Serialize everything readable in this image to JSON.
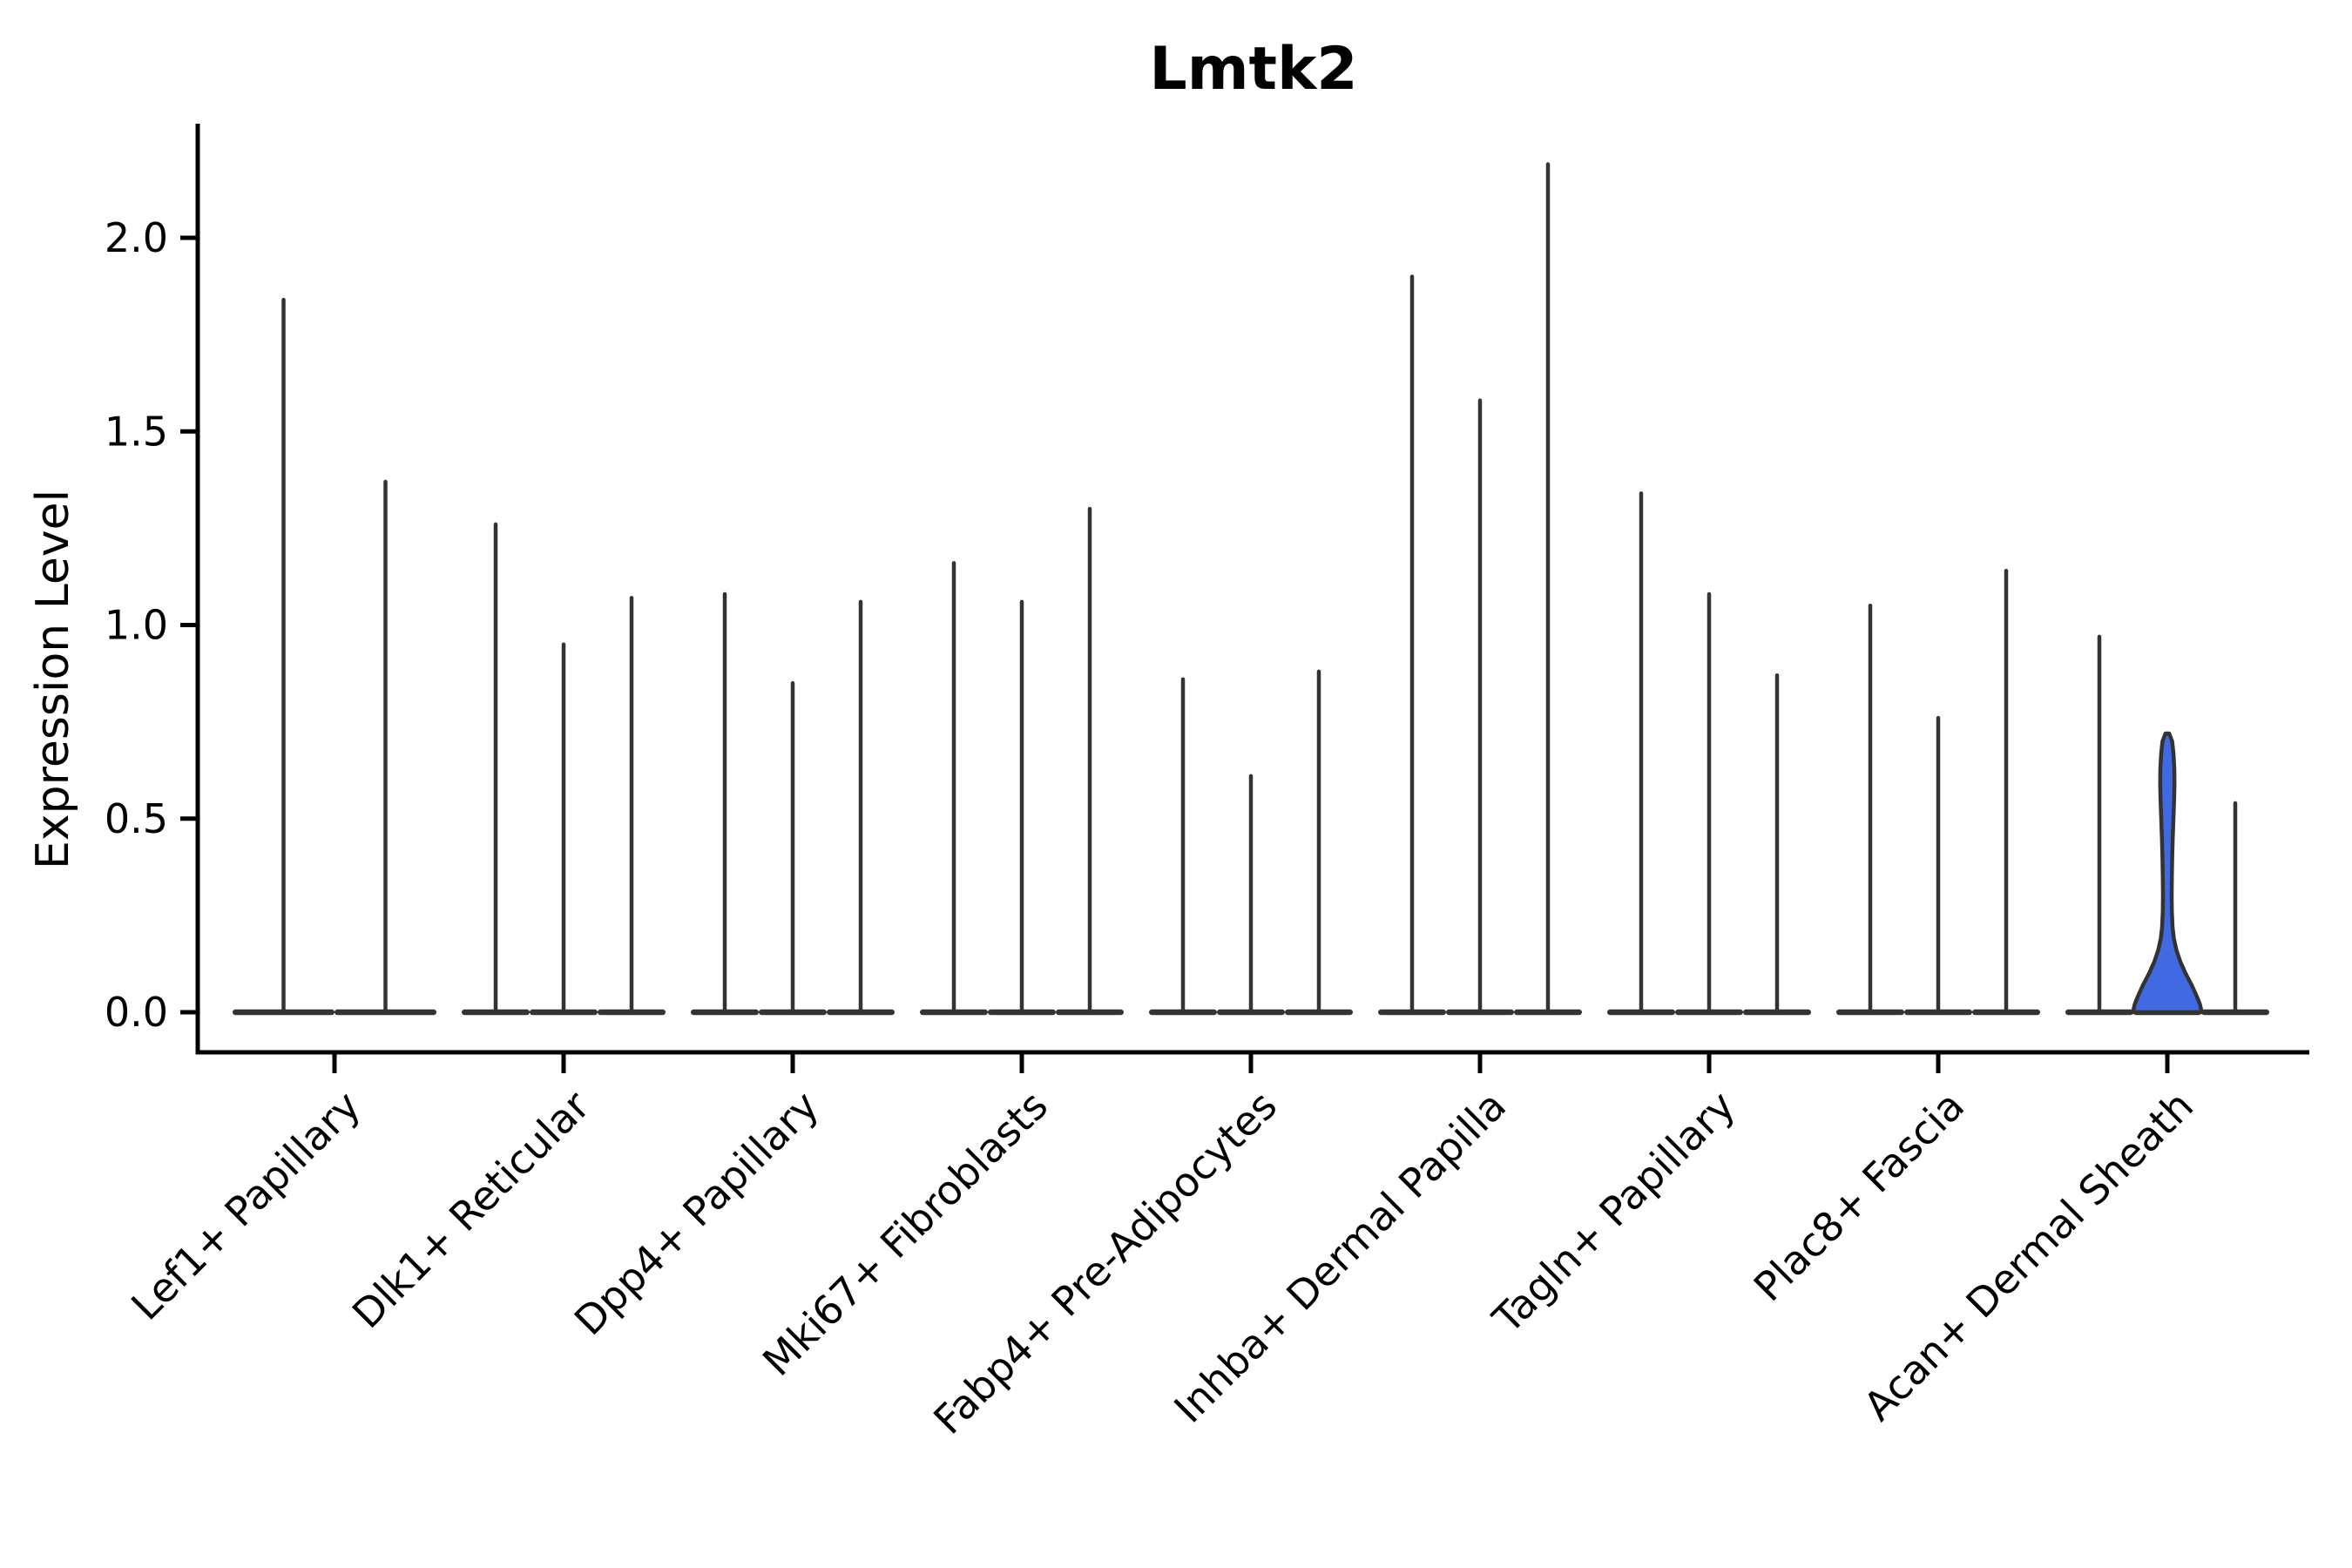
{
  "chart_data": {
    "type": "violin",
    "title": "Lmtk2",
    "xlabel": "",
    "ylabel": "Expression Level",
    "ylim": [
      0.0,
      2.3
    ],
    "yticks": [
      0.0,
      0.5,
      1.0,
      1.5,
      2.0
    ],
    "ytick_labels": [
      "0.0",
      "0.5",
      "1.0",
      "1.5",
      "2.0"
    ],
    "grid": false,
    "legend_position": "none",
    "baseline_value": 0.0,
    "categories": [
      "Lef1+ Papillary",
      "Dlk1+ Reticular",
      "Dpp4+ Papillary",
      "Mki67+ Fibroblasts",
      "Fabp4+ Pre-Adipocytes",
      "Inhba+ Dermal Papilla",
      "Tagln+ Papillary",
      "Plac8+ Fascia",
      "Acan+ Dermal Sheath"
    ],
    "groups": [
      {
        "category": "Lef1+ Papillary",
        "violin_max": [
          1.84,
          1.37
        ]
      },
      {
        "category": "Dlk1+ Reticular",
        "violin_max": [
          1.26,
          0.95,
          1.07
        ]
      },
      {
        "category": "Dpp4+ Papillary",
        "violin_max": [
          1.08,
          0.85,
          1.06
        ]
      },
      {
        "category": "Mki67+ Fibroblasts",
        "violin_max": [
          1.16,
          1.06,
          1.3
        ]
      },
      {
        "category": "Fabp4+ Pre-Adipocytes",
        "violin_max": [
          0.86,
          0.61,
          0.88
        ]
      },
      {
        "category": "Inhba+ Dermal Papilla",
        "violin_max": [
          1.9,
          1.58,
          2.19
        ]
      },
      {
        "category": "Tagln+ Papillary",
        "violin_max": [
          1.34,
          1.08,
          0.87
        ]
      },
      {
        "category": "Plac8+ Fascia",
        "violin_max": [
          1.05,
          0.76,
          1.14
        ]
      },
      {
        "category": "Acan+ Dermal Sheath",
        "violin_max": [
          0.97,
          0.72,
          0.54
        ],
        "highlight_index": 1
      }
    ],
    "highlight_violin": {
      "category": "Acan+ Dermal Sheath",
      "violin_index": 1,
      "max": 0.72,
      "fill": "#4169E1",
      "profile_value_halfwidth": [
        [
          0.72,
          2.0
        ],
        [
          0.7,
          5.5
        ],
        [
          0.67,
          7.0
        ],
        [
          0.63,
          8.0
        ],
        [
          0.59,
          8.2
        ],
        [
          0.55,
          7.8
        ],
        [
          0.5,
          7.0
        ],
        [
          0.45,
          6.2
        ],
        [
          0.4,
          5.6
        ],
        [
          0.35,
          5.2
        ],
        [
          0.3,
          5.0
        ],
        [
          0.26,
          5.2
        ],
        [
          0.22,
          6.0
        ],
        [
          0.19,
          7.5
        ],
        [
          0.16,
          10.5
        ],
        [
          0.13,
          15.0
        ],
        [
          0.1,
          21.0
        ],
        [
          0.07,
          28.0
        ],
        [
          0.04,
          34.0
        ],
        [
          0.02,
          37.5
        ],
        [
          0.0,
          39.5
        ]
      ]
    },
    "colors": {
      "violin_line": "#333333",
      "highlight_fill": "#4169E1",
      "axis": "#000000",
      "text": "#000000",
      "background": "#ffffff"
    }
  }
}
